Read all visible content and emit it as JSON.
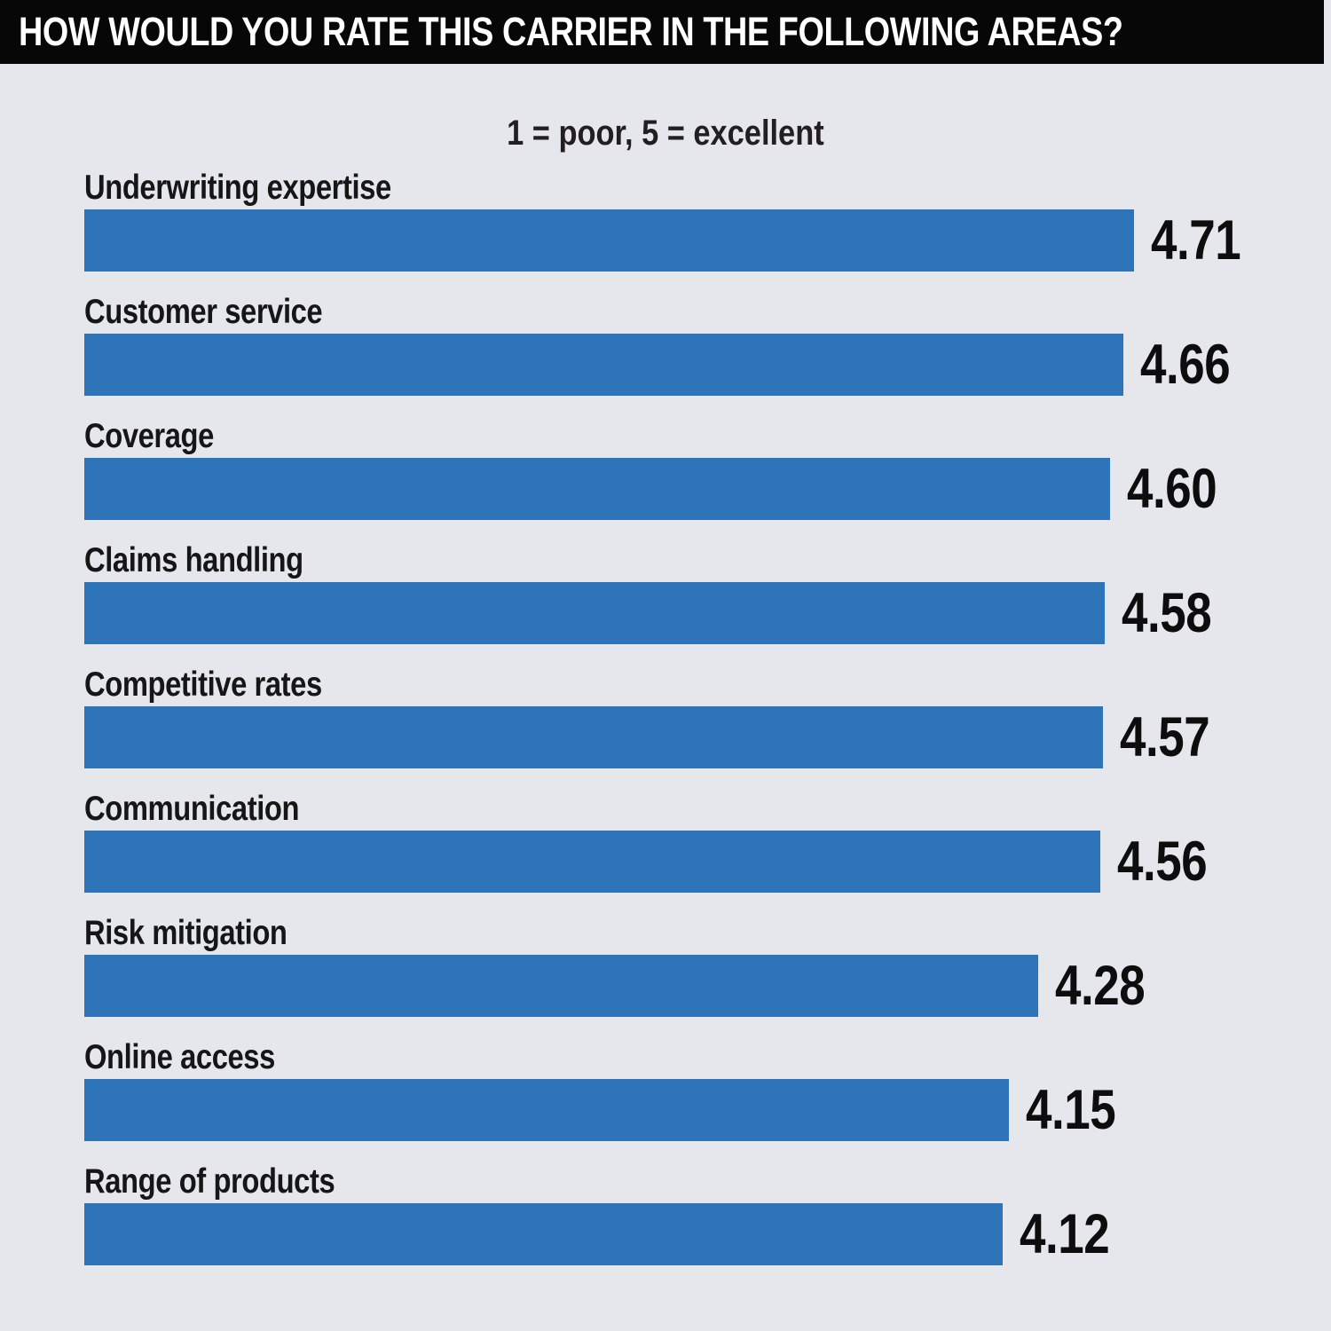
{
  "header": {
    "title": "HOW WOULD YOU RATE THIS CARRIER IN THE FOLLOWING AREAS?"
  },
  "chart_data": {
    "type": "bar",
    "orientation": "horizontal",
    "title": "HOW WOULD YOU RATE THIS CARRIER IN THE FOLLOWING AREAS?",
    "subtitle": "1 = poor, 5 = excellent",
    "categories": [
      "Underwriting expertise",
      "Customer service",
      "Coverage",
      "Claims handling",
      "Competitive rates",
      "Communication",
      "Risk mitigation",
      "Online access",
      "Range of products"
    ],
    "values": [
      4.71,
      4.66,
      4.6,
      4.58,
      4.57,
      4.56,
      4.28,
      4.15,
      4.12
    ],
    "value_labels": [
      "4.71",
      "4.66",
      "4.60",
      "4.58",
      "4.57",
      "4.56",
      "4.28",
      "4.15",
      "4.12"
    ],
    "xlim": [
      0,
      5
    ],
    "legend": "none",
    "grid": "off",
    "colors": {
      "bar": "#2d74b9",
      "background": "#e5e7ec",
      "title_bar_bg": "#070707",
      "title_text": "#ffffff",
      "label_text": "#161616",
      "value_text": "#0d0d0d"
    }
  }
}
